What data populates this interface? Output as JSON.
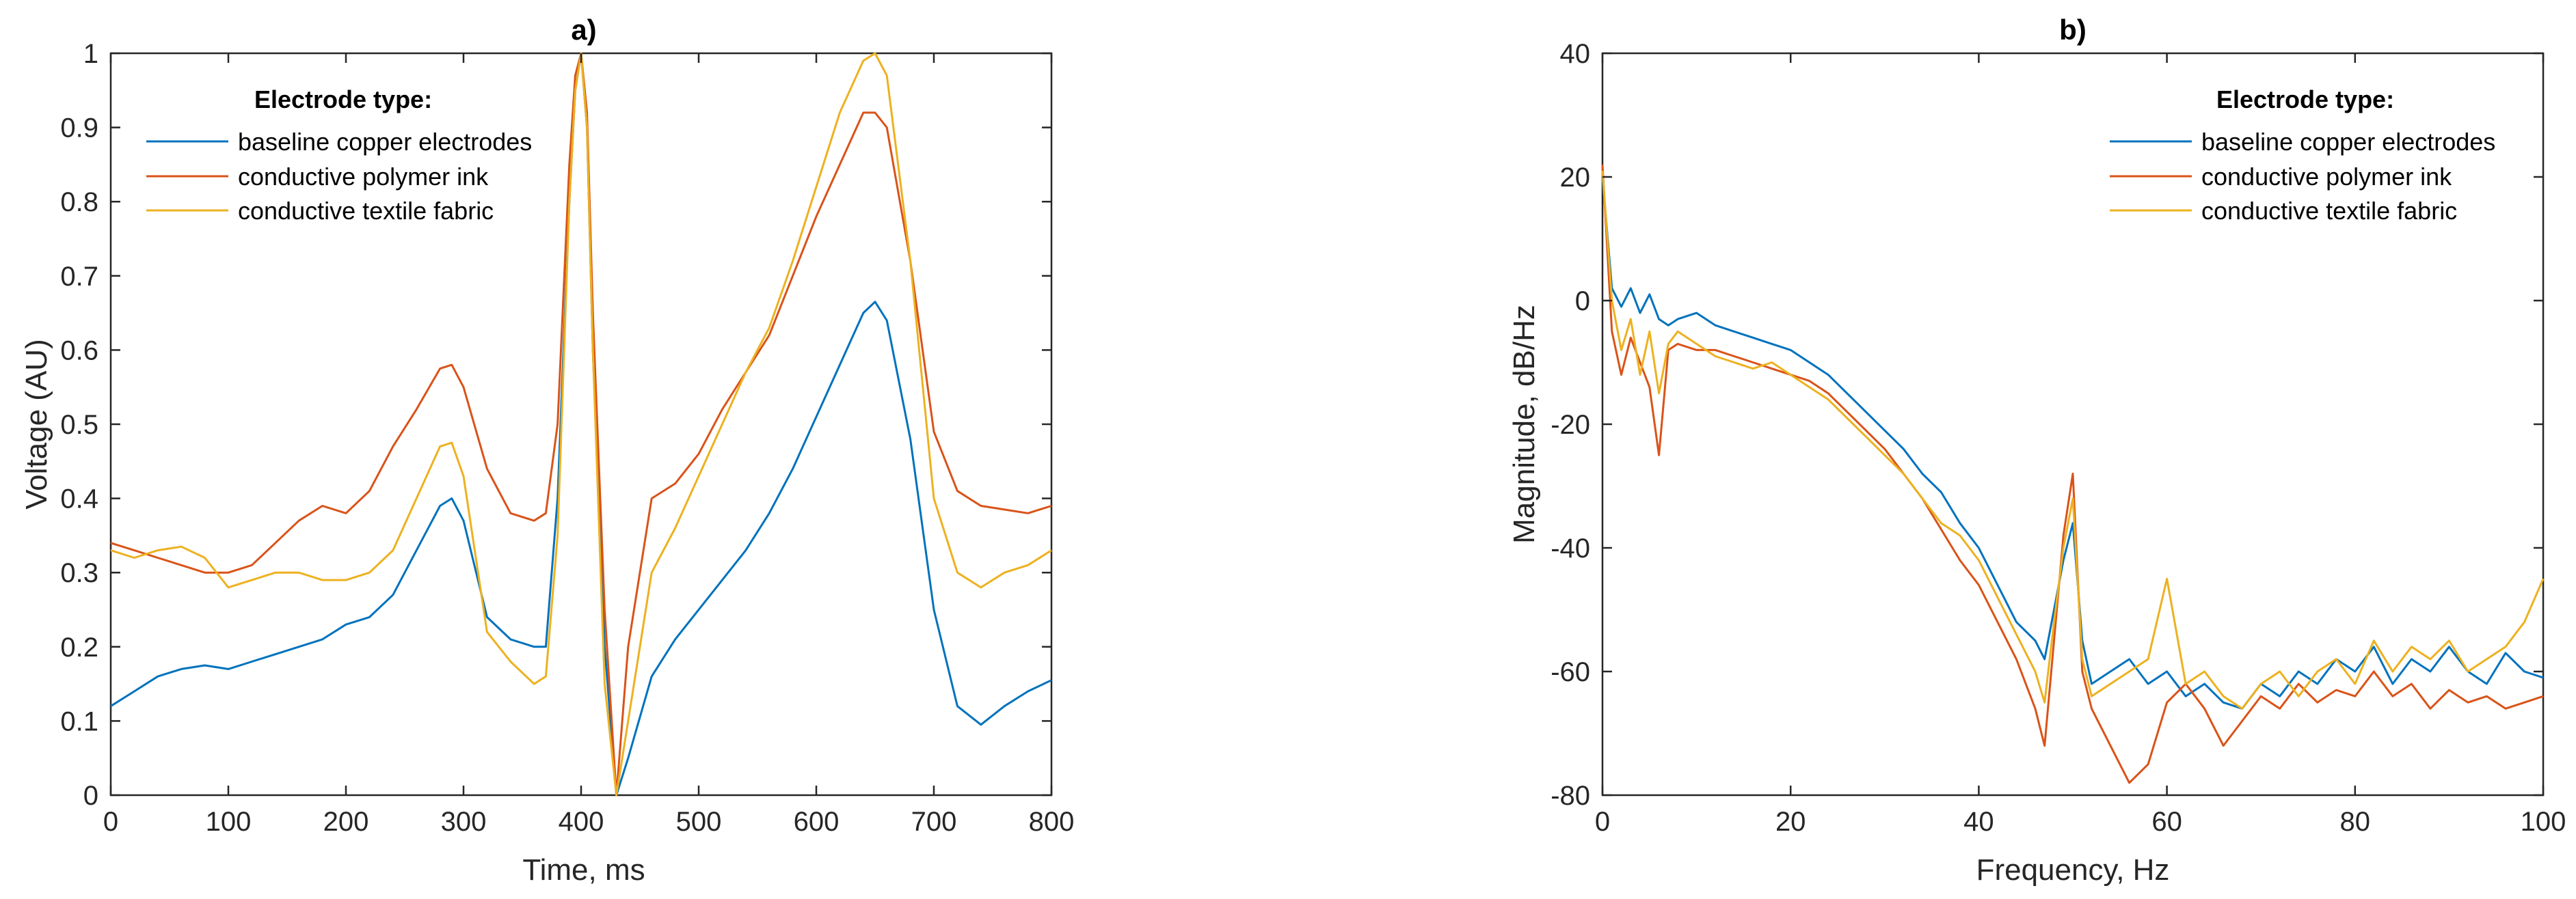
{
  "colors": {
    "series_1": "#0072BD",
    "series_2": "#D95319",
    "series_3": "#EDB120",
    "axis": "#262626"
  },
  "chart_data": [
    {
      "type": "line",
      "title": "a)",
      "xlabel": "Time, ms",
      "ylabel": "Voltage (AU)",
      "xlim": [
        0,
        800
      ],
      "ylim": [
        0,
        1
      ],
      "xticks": [
        0,
        100,
        200,
        300,
        400,
        500,
        600,
        700,
        800
      ],
      "yticks": [
        0,
        0.1,
        0.2,
        0.3,
        0.4,
        0.5,
        0.6,
        0.7,
        0.8,
        0.9,
        1
      ],
      "xtick_labels": [
        "0",
        "100",
        "200",
        "300",
        "400",
        "500",
        "600",
        "700",
        "800"
      ],
      "ytick_labels": [
        "0",
        "0.1",
        "0.2",
        "0.3",
        "0.4",
        "0.5",
        "0.6",
        "0.7",
        "0.8",
        "0.9",
        "1"
      ],
      "grid": false,
      "legend": {
        "title": "Electrode type:",
        "placement": "top-left"
      },
      "series": [
        {
          "name": "baseline copper electrodes",
          "x": [
            0,
            20,
            40,
            60,
            80,
            100,
            120,
            140,
            160,
            180,
            200,
            220,
            240,
            260,
            280,
            290,
            300,
            320,
            340,
            360,
            370,
            380,
            390,
            395,
            400,
            405,
            410,
            420,
            430,
            440,
            460,
            480,
            500,
            520,
            540,
            560,
            580,
            600,
            620,
            640,
            650,
            660,
            680,
            700,
            720,
            740,
            760,
            780,
            800
          ],
          "y": [
            0.12,
            0.14,
            0.16,
            0.17,
            0.175,
            0.17,
            0.18,
            0.19,
            0.2,
            0.21,
            0.23,
            0.24,
            0.27,
            0.33,
            0.39,
            0.4,
            0.37,
            0.24,
            0.21,
            0.2,
            0.2,
            0.4,
            0.8,
            0.95,
            1.0,
            0.9,
            0.6,
            0.2,
            0.0,
            0.05,
            0.16,
            0.21,
            0.25,
            0.29,
            0.33,
            0.38,
            0.44,
            0.51,
            0.58,
            0.65,
            0.665,
            0.64,
            0.48,
            0.25,
            0.12,
            0.095,
            0.12,
            0.14,
            0.155
          ]
        },
        {
          "name": "conductive polymer ink",
          "x": [
            0,
            20,
            40,
            60,
            80,
            100,
            120,
            140,
            160,
            180,
            200,
            220,
            240,
            260,
            280,
            290,
            300,
            320,
            340,
            360,
            370,
            380,
            390,
            395,
            400,
            405,
            410,
            420,
            430,
            440,
            460,
            480,
            500,
            520,
            540,
            560,
            580,
            600,
            620,
            640,
            650,
            660,
            680,
            700,
            720,
            740,
            760,
            780,
            800
          ],
          "y": [
            0.34,
            0.33,
            0.32,
            0.31,
            0.3,
            0.3,
            0.31,
            0.34,
            0.37,
            0.39,
            0.38,
            0.41,
            0.47,
            0.52,
            0.575,
            0.58,
            0.55,
            0.44,
            0.38,
            0.37,
            0.38,
            0.5,
            0.85,
            0.97,
            1.0,
            0.92,
            0.65,
            0.25,
            0.0,
            0.2,
            0.4,
            0.42,
            0.46,
            0.52,
            0.57,
            0.62,
            0.7,
            0.78,
            0.85,
            0.92,
            0.92,
            0.9,
            0.72,
            0.49,
            0.41,
            0.39,
            0.385,
            0.38,
            0.39
          ]
        },
        {
          "name": "conductive textile fabric",
          "x": [
            0,
            20,
            40,
            60,
            80,
            100,
            120,
            140,
            160,
            180,
            200,
            220,
            240,
            260,
            280,
            290,
            300,
            320,
            340,
            360,
            370,
            380,
            390,
            395,
            400,
            405,
            410,
            420,
            430,
            440,
            460,
            480,
            500,
            520,
            540,
            560,
            580,
            600,
            620,
            640,
            650,
            660,
            680,
            700,
            720,
            740,
            760,
            780,
            800
          ],
          "y": [
            0.33,
            0.32,
            0.33,
            0.335,
            0.32,
            0.28,
            0.29,
            0.3,
            0.3,
            0.29,
            0.29,
            0.3,
            0.33,
            0.4,
            0.47,
            0.475,
            0.43,
            0.22,
            0.18,
            0.15,
            0.16,
            0.35,
            0.8,
            0.95,
            1.0,
            0.9,
            0.6,
            0.15,
            0.0,
            0.1,
            0.3,
            0.36,
            0.43,
            0.5,
            0.57,
            0.63,
            0.72,
            0.82,
            0.92,
            0.99,
            1.0,
            0.97,
            0.72,
            0.4,
            0.3,
            0.28,
            0.3,
            0.31,
            0.33
          ]
        }
      ]
    },
    {
      "type": "line",
      "title": "b)",
      "xlabel": "Frequency, Hz",
      "ylabel": "Magnitude, dB/Hz",
      "xlim": [
        0,
        100
      ],
      "ylim": [
        -80,
        40
      ],
      "xticks": [
        0,
        20,
        40,
        60,
        80,
        100
      ],
      "yticks": [
        -80,
        -60,
        -40,
        -20,
        0,
        20,
        40
      ],
      "xtick_labels": [
        "0",
        "20",
        "40",
        "60",
        "80",
        "100"
      ],
      "ytick_labels": [
        "-80",
        "-60",
        "-40",
        "-20",
        "0",
        "20",
        "40"
      ],
      "grid": false,
      "legend": {
        "title": "Electrode type:",
        "placement": "top-right"
      },
      "series": [
        {
          "name": "baseline copper electrodes",
          "x": [
            0,
            1,
            2,
            3,
            4,
            5,
            6,
            7,
            8,
            10,
            12,
            14,
            16,
            18,
            20,
            22,
            24,
            26,
            28,
            30,
            32,
            34,
            36,
            38,
            40,
            42,
            44,
            46,
            47,
            48,
            49,
            50,
            51,
            52,
            54,
            56,
            58,
            60,
            62,
            64,
            66,
            68,
            70,
            72,
            74,
            76,
            78,
            80,
            82,
            84,
            86,
            88,
            90,
            92,
            94,
            96,
            98,
            100
          ],
          "y": [
            20,
            2,
            -1,
            2,
            -2,
            1,
            -3,
            -4,
            -3,
            -2,
            -4,
            -5,
            -6,
            -7,
            -8,
            -10,
            -12,
            -15,
            -18,
            -21,
            -24,
            -28,
            -31,
            -36,
            -40,
            -46,
            -52,
            -55,
            -58,
            -50,
            -42,
            -36,
            -55,
            -62,
            -60,
            -58,
            -62,
            -60,
            -64,
            -62,
            -65,
            -66,
            -62,
            -64,
            -60,
            -62,
            -58,
            -60,
            -56,
            -62,
            -58,
            -60,
            -56,
            -60,
            -62,
            -57,
            -60,
            -61
          ]
        },
        {
          "name": "conductive polymer ink",
          "x": [
            0,
            1,
            2,
            3,
            4,
            5,
            6,
            7,
            8,
            10,
            12,
            14,
            16,
            18,
            20,
            22,
            24,
            26,
            28,
            30,
            32,
            34,
            36,
            38,
            40,
            42,
            44,
            46,
            47,
            48,
            49,
            50,
            51,
            52,
            54,
            56,
            58,
            60,
            62,
            64,
            66,
            68,
            70,
            72,
            74,
            76,
            78,
            80,
            82,
            84,
            86,
            88,
            90,
            92,
            94,
            96,
            98,
            100
          ],
          "y": [
            22,
            -5,
            -12,
            -6,
            -10,
            -14,
            -25,
            -8,
            -7,
            -8,
            -8,
            -9,
            -10,
            -11,
            -12,
            -13,
            -15,
            -18,
            -21,
            -24,
            -28,
            -32,
            -37,
            -42,
            -46,
            -52,
            -58,
            -66,
            -72,
            -55,
            -38,
            -28,
            -60,
            -66,
            -72,
            -78,
            -75,
            -65,
            -62,
            -66,
            -72,
            -68,
            -64,
            -66,
            -62,
            -65,
            -63,
            -64,
            -60,
            -64,
            -62,
            -66,
            -63,
            -65,
            -64,
            -66,
            -65,
            -64
          ]
        },
        {
          "name": "conductive textile fabric",
          "x": [
            0,
            1,
            2,
            3,
            4,
            5,
            6,
            7,
            8,
            10,
            12,
            14,
            16,
            18,
            20,
            22,
            24,
            26,
            28,
            30,
            32,
            34,
            36,
            38,
            40,
            42,
            44,
            46,
            47,
            48,
            49,
            50,
            51,
            52,
            54,
            56,
            58,
            60,
            62,
            64,
            66,
            68,
            70,
            72,
            74,
            76,
            78,
            80,
            82,
            84,
            86,
            88,
            90,
            92,
            94,
            96,
            98,
            100
          ],
          "y": [
            21,
            0,
            -8,
            -3,
            -12,
            -5,
            -15,
            -7,
            -5,
            -7,
            -9,
            -10,
            -11,
            -10,
            -12,
            -14,
            -16,
            -19,
            -22,
            -25,
            -28,
            -32,
            -36,
            -38,
            -42,
            -48,
            -54,
            -60,
            -65,
            -52,
            -40,
            -32,
            -58,
            -64,
            -62,
            -60,
            -58,
            -45,
            -62,
            -60,
            -64,
            -66,
            -62,
            -60,
            -64,
            -60,
            -58,
            -62,
            -55,
            -60,
            -56,
            -58,
            -55,
            -60,
            -58,
            -56,
            -52,
            -45
          ]
        }
      ]
    }
  ]
}
